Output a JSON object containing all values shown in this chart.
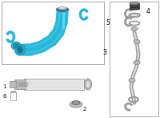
{
  "bg_color": "#ffffff",
  "tube_color": "#29b6d8",
  "tube_dark": "#1a8faa",
  "tube_shadow": "#0d7a96",
  "part_gray": "#888888",
  "part_dark": "#444444",
  "part_light": "#bbbbbb",
  "part_mid": "#999999",
  "border_color": "#999999",
  "label5": "5",
  "label3": "3",
  "label4": "4",
  "label1": "1",
  "label2": "2",
  "label6": "6"
}
